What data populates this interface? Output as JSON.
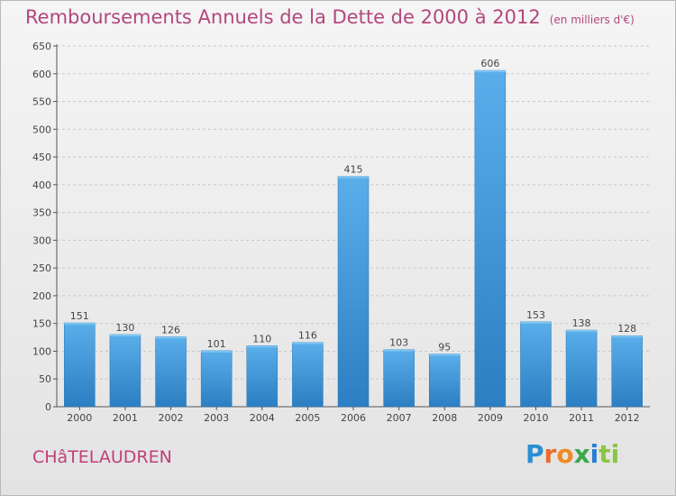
{
  "chart_data": {
    "type": "bar",
    "title": "Remboursements Annuels de la Dette de 2000 à 2012",
    "unit_note": "(en milliers d'€)",
    "categories": [
      "2000",
      "2001",
      "2002",
      "2003",
      "2004",
      "2005",
      "2006",
      "2007",
      "2008",
      "2009",
      "2010",
      "2011",
      "2012"
    ],
    "values": [
      151,
      130,
      126,
      101,
      110,
      116,
      415,
      103,
      95,
      606,
      153,
      138,
      128
    ],
    "data_labels": [
      "151",
      "130",
      "126",
      "101",
      "110",
      "116",
      "415",
      "103",
      "95",
      "606",
      "153",
      "138",
      "128"
    ],
    "ylim": [
      0,
      650
    ],
    "y_ticks": [
      0,
      50,
      100,
      150,
      200,
      250,
      300,
      350,
      400,
      450,
      500,
      550,
      600,
      650
    ],
    "y_tick_labels": [
      "0",
      "50",
      "100",
      "150",
      "200",
      "250",
      "300",
      "350",
      "400",
      "450",
      "500",
      "550",
      "600",
      "650"
    ],
    "grid": true,
    "grid_style": "dashed-horizontal",
    "bar_color": "#4a9ee0",
    "title_color": "#b3477c"
  },
  "footer": {
    "commune": "CHâTELAUDREN",
    "logo": {
      "letters": [
        "P",
        "r",
        "o",
        "x",
        "i",
        "t",
        "i"
      ],
      "colors": [
        "#2a8fd2",
        "#e86d2c",
        "#f08a22",
        "#3aa94a",
        "#2a7fd2",
        "#8cc63f",
        "#8cc63f"
      ]
    }
  }
}
